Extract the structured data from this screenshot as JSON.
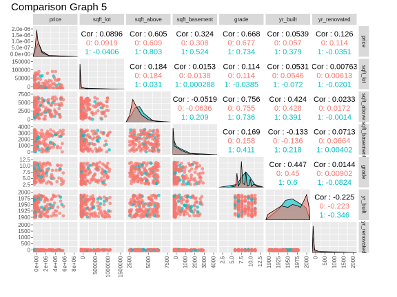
{
  "title": "Comparison Graph 5",
  "colors": {
    "group_1": "#F8766D",
    "group_2": "#00BFC4",
    "panel_bg": "#EBEBEB",
    "strip_bg": "#D9D9D9",
    "grid": "#FFFFFF"
  },
  "chart_data": {
    "type": "scatter-matrix",
    "title": "Comparison Graph 5",
    "variables": [
      "price",
      "sqft_lot",
      "sqft_above",
      "sqft_basement",
      "grade",
      "yr_built",
      "yr_renovated"
    ],
    "diagonal": "density",
    "lower": "scatter",
    "upper": "correlation",
    "correlations": [
      {
        "row": "price",
        "col": "sqft_lot",
        "overall": "Cor : 0.0896",
        "g1": "0: 0.0919",
        "g2": "1: -0.0406"
      },
      {
        "row": "price",
        "col": "sqft_above",
        "overall": "Cor : 0.605",
        "g1": "0: 0.609",
        "g2": "1: 0.803"
      },
      {
        "row": "price",
        "col": "sqft_basement",
        "overall": "Cor : 0.324",
        "g1": "0: 0.308",
        "g2": "1: 0.524"
      },
      {
        "row": "price",
        "col": "grade",
        "overall": "Cor : 0.668",
        "g1": "0: 0.677",
        "g2": "1: 0.734"
      },
      {
        "row": "price",
        "col": "yr_built",
        "overall": "Cor : 0.0539",
        "g1": "0: 0.057",
        "g2": "1: 0.379"
      },
      {
        "row": "price",
        "col": "yr_renovated",
        "overall": "Cor : 0.126",
        "g1": "0: 0.114",
        "g2": "1: -0.0351"
      },
      {
        "row": "sqft_lot",
        "col": "sqft_above",
        "overall": "Cor : 0.184",
        "g1": "0: 0.184",
        "g2": "1: 0.031"
      },
      {
        "row": "sqft_lot",
        "col": "sqft_basement",
        "overall": "Cor : 0.0153",
        "g1": "0: 0.0138",
        "g2": "1: 0.000288"
      },
      {
        "row": "sqft_lot",
        "col": "grade",
        "overall": "Cor : 0.114",
        "g1": "0: 0.114",
        "g2": "1: -0.0385"
      },
      {
        "row": "sqft_lot",
        "col": "yr_built",
        "overall": "Cor : 0.0531",
        "g1": "0: 0.0546",
        "g2": "1: -0.072"
      },
      {
        "row": "sqft_lot",
        "col": "yr_renovated",
        "overall": "Cor : 0.00763",
        "g1": "0: 0.00613",
        "g2": "1: -0.0201"
      },
      {
        "row": "sqft_above",
        "col": "sqft_basement",
        "overall": "Cor : -0.0519",
        "g1": "0: -0.0636",
        "g2": "1: 0.209"
      },
      {
        "row": "sqft_above",
        "col": "grade",
        "overall": "Cor : 0.756",
        "g1": "0: 0.755",
        "g2": "1: 0.736"
      },
      {
        "row": "sqft_above",
        "col": "yr_built",
        "overall": "Cor : 0.424",
        "g1": "0: 0.428",
        "g2": "1: 0.391"
      },
      {
        "row": "sqft_above",
        "col": "yr_renovated",
        "overall": "Cor : 0.0233",
        "g1": "0: 0.0172",
        "g2": "1: -0.0014"
      },
      {
        "row": "sqft_basement",
        "col": "grade",
        "overall": "Cor : 0.169",
        "g1": "0: 0.158",
        "g2": "1: 0.411"
      },
      {
        "row": "sqft_basement",
        "col": "yr_built",
        "overall": "Cor : -0.133",
        "g1": "0: -0.136",
        "g2": "1: 0.218"
      },
      {
        "row": "sqft_basement",
        "col": "yr_renovated",
        "overall": "Cor : 0.0713",
        "g1": "0: 0.0664",
        "g2": "1: 0.00402"
      },
      {
        "row": "grade",
        "col": "yr_built",
        "overall": "Cor : 0.447",
        "g1": "0: 0.45",
        "g2": "1: 0.6"
      },
      {
        "row": "grade",
        "col": "yr_renovated",
        "overall": "Cor : 0.0144",
        "g1": "0: 0.00902",
        "g2": "1: -0.0824"
      },
      {
        "row": "yr_built",
        "col": "yr_renovated",
        "overall": "Cor : -0.225",
        "g1": "0: -0.223",
        "g2": "1: -0.346"
      }
    ],
    "y_ticks": {
      "price": [
        "2.0e-06",
        "1.5e-06",
        "1.0e-06",
        "5.0e-07",
        "0.0e+00"
      ],
      "sqft_lot": [
        "150000",
        "100000",
        "50000",
        "0"
      ],
      "sqft_above": [
        "7500",
        "5000",
        "2500",
        "0"
      ],
      "sqft_basement": [
        "4000",
        "3000",
        "2000",
        "1000",
        "0"
      ],
      "grade": [
        "12.5",
        "10.0",
        "7.5",
        "5.0",
        "2.5"
      ],
      "yr_built": [
        "2000",
        "1975",
        "1950",
        "1925",
        "1900"
      ],
      "yr_renovated": [
        "2000",
        "1500",
        "1000",
        "500",
        "0"
      ]
    },
    "x_ticks": {
      "price": [
        "0e+00",
        "2e+06",
        "4e+06",
        "6e+06",
        "8e+06"
      ],
      "sqft_lot": [
        "0",
        "500000",
        "1000000",
        "1500000"
      ],
      "sqft_above": [
        "2500",
        "5000",
        "7500"
      ],
      "sqft_basement": [
        "0",
        "1000",
        "2000",
        "3000",
        "4000"
      ],
      "grade": [
        "2.5",
        "5.0",
        "7.5",
        "10.0",
        "12.5"
      ],
      "yr_built": [
        "1900",
        "1925",
        "1950",
        "1975",
        "2000"
      ],
      "yr_renovated": [
        "0",
        "500",
        "1000",
        "1500",
        "2000"
      ]
    }
  }
}
